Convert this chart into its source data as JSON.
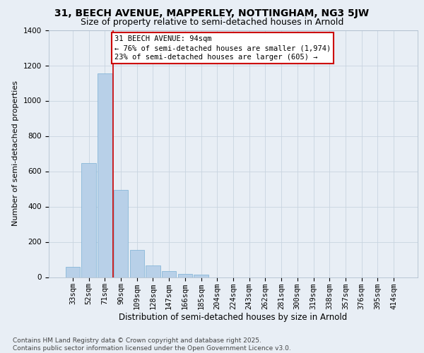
{
  "title1": "31, BEECH AVENUE, MAPPERLEY, NOTTINGHAM, NG3 5JW",
  "title2": "Size of property relative to semi-detached houses in Arnold",
  "xlabel": "Distribution of semi-detached houses by size in Arnold",
  "ylabel": "Number of semi-detached properties",
  "categories": [
    "33sqm",
    "52sqm",
    "71sqm",
    "90sqm",
    "109sqm",
    "128sqm",
    "147sqm",
    "166sqm",
    "185sqm",
    "204sqm",
    "224sqm",
    "243sqm",
    "262sqm",
    "281sqm",
    "300sqm",
    "319sqm",
    "338sqm",
    "357sqm",
    "376sqm",
    "395sqm",
    "414sqm"
  ],
  "values": [
    60,
    645,
    1155,
    495,
    155,
    65,
    33,
    20,
    13,
    0,
    0,
    0,
    0,
    0,
    0,
    0,
    0,
    0,
    0,
    0,
    0
  ],
  "bar_color": "#b8d0e8",
  "bar_edge_color": "#7aafd4",
  "grid_color": "#c8d4e0",
  "background_color": "#e8eef5",
  "annotation_box_text": "31 BEECH AVENUE: 94sqm\n← 76% of semi-detached houses are smaller (1,974)\n23% of semi-detached houses are larger (605) →",
  "annotation_box_color": "#ffffff",
  "annotation_box_edge_color": "#cc0000",
  "vline_color": "#cc0000",
  "ylim": [
    0,
    1400
  ],
  "yticks": [
    0,
    200,
    400,
    600,
    800,
    1000,
    1200,
    1400
  ],
  "footer_text": "Contains HM Land Registry data © Crown copyright and database right 2025.\nContains public sector information licensed under the Open Government Licence v3.0.",
  "title1_fontsize": 10,
  "title2_fontsize": 9,
  "xlabel_fontsize": 8.5,
  "ylabel_fontsize": 8,
  "tick_fontsize": 7.5,
  "annotation_fontsize": 7.5,
  "footer_fontsize": 6.5
}
